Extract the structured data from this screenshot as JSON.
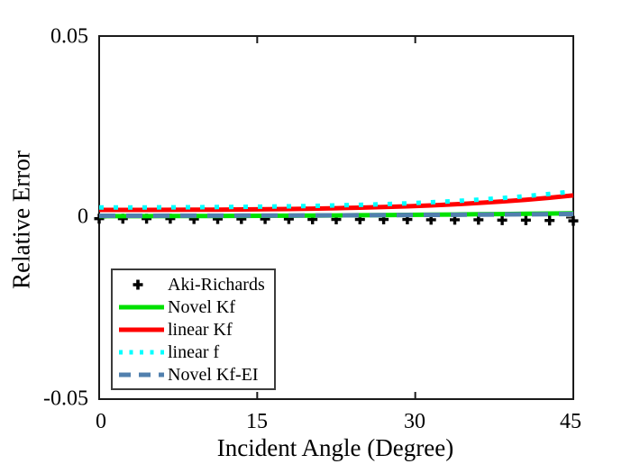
{
  "figure": {
    "background": "#ffffff",
    "axis_color": "#1a1a1a",
    "text_color": "#000000"
  },
  "chart_data": {
    "type": "line",
    "title": "",
    "xlabel": "Incident Angle (Degree)",
    "ylabel": "Relative Error",
    "xlim": [
      0,
      45
    ],
    "ylim": [
      -0.05,
      0.05
    ],
    "x_ticks": [
      0,
      15,
      30,
      45
    ],
    "x_tick_labels": [
      "0",
      "15",
      "30",
      "45"
    ],
    "y_ticks": [
      -0.05,
      0,
      0.05
    ],
    "y_tick_labels": [
      "-0.05",
      "0",
      "0.05"
    ],
    "grid": false,
    "legend_position": "lower-left",
    "x": [
      0,
      2.25,
      4.5,
      6.75,
      9,
      11.25,
      13.5,
      15.75,
      18,
      20.25,
      22.5,
      24.75,
      27,
      29.25,
      31.5,
      33.75,
      36,
      38.25,
      40.5,
      42.75,
      45
    ],
    "series": [
      {
        "name": "Aki-Richards",
        "style": "marker-plus",
        "color": "#000000",
        "values": [
          -0.0003,
          -0.0003,
          -0.0003,
          -0.0003,
          -0.0004,
          -0.0004,
          -0.0004,
          -0.0004,
          -0.0004,
          -0.0005,
          -0.0005,
          -0.0005,
          -0.0005,
          -0.0005,
          -0.0006,
          -0.0006,
          -0.0006,
          -0.0007,
          -0.0007,
          -0.0008,
          -0.0009
        ]
      },
      {
        "name": "Novel Kf",
        "style": "solid",
        "color": "#00e100",
        "values": [
          0.0004,
          0.000402,
          0.000408,
          0.000418,
          0.000432,
          0.00045,
          0.000472,
          0.000498,
          0.000528,
          0.000562,
          0.0006,
          0.000642,
          0.000688,
          0.000738,
          0.000792,
          0.00085,
          0.000912,
          0.000978,
          0.001048,
          0.001122,
          0.0012
        ]
      },
      {
        "name": "linear Kf",
        "style": "solid",
        "color": "#ff0000",
        "values": [
          0.0021,
          0.0021,
          0.00211,
          0.00213,
          0.00215,
          0.00219,
          0.00223,
          0.00229,
          0.00236,
          0.00246,
          0.00258,
          0.00272,
          0.0029,
          0.00311,
          0.00336,
          0.00366,
          0.00402,
          0.00443,
          0.00491,
          0.00546,
          0.0061
        ]
      },
      {
        "name": "linear f",
        "style": "dotted",
        "color": "#00ffff",
        "values": [
          0.0028,
          0.0028,
          0.00281,
          0.00283,
          0.00286,
          0.0029,
          0.00295,
          0.00302,
          0.0031,
          0.00321,
          0.00334,
          0.0035,
          0.00369,
          0.00392,
          0.00421,
          0.00454,
          0.00493,
          0.00538,
          0.00591,
          0.00651,
          0.0072
        ]
      },
      {
        "name": "Novel Kf-EI",
        "style": "dashed",
        "color": "#5180ae",
        "values": [
          0.0005,
          0.000501,
          0.000505,
          0.000511,
          0.00052,
          0.000531,
          0.000545,
          0.000561,
          0.00058,
          0.000601,
          0.000625,
          0.000651,
          0.00068,
          0.000711,
          0.000745,
          0.000781,
          0.00082,
          0.000861,
          0.000905,
          0.000951,
          0.001
        ]
      }
    ]
  }
}
